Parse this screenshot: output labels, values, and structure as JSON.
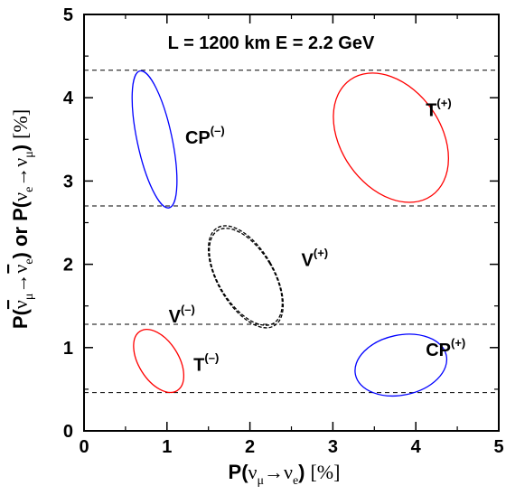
{
  "chart_data": {
    "type": "scatter",
    "title": "L = 1200 km  E = 2.2 GeV",
    "xlabel": {
      "prefix": "P(",
      "nu1": "ν",
      "sub1": "μ",
      "arrow": "→",
      "nu2": "ν",
      "sub2": "e",
      "close": ")",
      "unit": "[%]"
    },
    "ylabel": {
      "p1": "P(",
      "nubar1": "ν",
      "sub1": "μ",
      "arrow1": "→",
      "nubar2": "ν",
      "sub2": "e",
      "close1": ")",
      "or": " or ",
      "p2": "P(",
      "nu3": "ν",
      "sub3": "e",
      "arrow2": "→",
      "nu4": "ν",
      "sub4": "μ",
      "close2": ")",
      "unit": "[%]"
    },
    "xlim": [
      0,
      5
    ],
    "ylim": [
      0,
      5
    ],
    "xticks": [
      "0",
      "1",
      "2",
      "3",
      "4",
      "5"
    ],
    "yticks": [
      "0",
      "1",
      "2",
      "3",
      "4",
      "5"
    ],
    "grid": false,
    "hlines": [
      4.33,
      2.7,
      1.28,
      0.46
    ],
    "series": [
      {
        "name": "CP",
        "sign": "(–)",
        "color": "#0000ff",
        "style": "solid",
        "cx": 0.85,
        "cy": 3.5,
        "rx": 0.21,
        "ry": 0.84,
        "angle": -12,
        "label_pos": [
          1.22,
          3.45
        ]
      },
      {
        "name": "T",
        "sign": "(+)",
        "color": "#ff0000",
        "style": "solid",
        "cx": 3.7,
        "cy": 3.52,
        "rx": 0.6,
        "ry": 0.85,
        "angle": -35,
        "label_pos": [
          4.12,
          3.78
        ]
      },
      {
        "name": "V",
        "sign": "(+)",
        "color": "#000000",
        "style": "dashed",
        "cx": 1.95,
        "cy": 1.85,
        "rx": 0.34,
        "ry": 0.68,
        "angle": -30,
        "label_pos": [
          2.62,
          1.98
        ]
      },
      {
        "name": "V",
        "sign": "(–)",
        "color": "#000000",
        "style": "dashed",
        "cx": 1.95,
        "cy": 1.85,
        "rx": 0.33,
        "ry": 0.65,
        "angle": -31,
        "label_pos": [
          1.02,
          1.3
        ]
      },
      {
        "name": "T",
        "sign": "(–)",
        "color": "#ff0000",
        "style": "solid",
        "cx": 0.9,
        "cy": 0.84,
        "rx": 0.24,
        "ry": 0.42,
        "angle": -32,
        "label_pos": [
          1.32,
          0.72
        ]
      },
      {
        "name": "CP",
        "sign": "(+)",
        "color": "#0000ff",
        "style": "solid",
        "cx": 3.82,
        "cy": 0.79,
        "rx": 0.56,
        "ry": 0.36,
        "angle": -12,
        "label_pos": [
          4.12,
          0.9
        ]
      }
    ]
  }
}
